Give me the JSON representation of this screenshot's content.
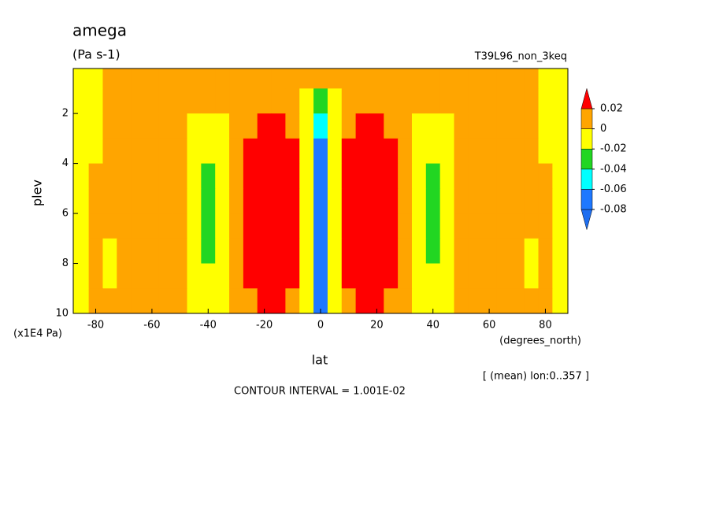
{
  "chart_data": {
    "type": "contourf",
    "title": "amega",
    "subtitle": "(Pa s-1)",
    "dataset": "T39L96_non_3keq",
    "xlabel": "lat",
    "ylabel": "plev",
    "xunits": "(degrees_north)",
    "yunits": "(x1E4 Pa)",
    "note": "[ (mean) lon:0..357 ]",
    "footer": "CONTOUR INTERVAL = 1.001E-02",
    "xlim": [
      -88,
      88
    ],
    "ylim": [
      10,
      0.2
    ],
    "xticks": [
      -80,
      -60,
      -40,
      -20,
      0,
      20,
      40,
      60,
      80
    ],
    "yticks": [
      2,
      4,
      6,
      8,
      10
    ],
    "x": [
      -85,
      -80,
      -75,
      -70,
      -65,
      -60,
      -55,
      -50,
      -45,
      -40,
      -35,
      -30,
      -25,
      -20,
      -15,
      -10,
      -5,
      0,
      5,
      10,
      15,
      20,
      25,
      30,
      35,
      40,
      45,
      50,
      55,
      60,
      65,
      70,
      75,
      80,
      85
    ],
    "y": [
      0.5,
      1.5,
      2.5,
      3.5,
      4.5,
      5.5,
      6.5,
      7.5,
      8.5,
      9.5
    ],
    "z": [
      [
        -0.01,
        -0.01,
        0.01,
        0.01,
        0.01,
        0.01,
        0.01,
        0.01,
        0.01,
        0.01,
        0.01,
        0.01,
        0.01,
        0.01,
        0.01,
        0.01,
        0.01,
        0.01,
        0.01,
        0.01,
        0.01,
        0.01,
        0.01,
        0.01,
        0.01,
        0.01,
        0.01,
        0.01,
        0.01,
        0.01,
        0.01,
        0.01,
        0.01,
        -0.01,
        -0.01
      ],
      [
        -0.01,
        -0.01,
        0.01,
        0.01,
        0.01,
        0.01,
        0.01,
        0.01,
        0.01,
        0.01,
        0.01,
        0.01,
        0.01,
        0.01,
        0.01,
        0.01,
        -0.01,
        -0.03,
        -0.01,
        0.01,
        0.01,
        0.01,
        0.01,
        0.01,
        0.01,
        0.01,
        0.01,
        0.01,
        0.01,
        0.01,
        0.01,
        0.01,
        0.01,
        -0.01,
        -0.01
      ],
      [
        -0.01,
        -0.01,
        0.01,
        0.01,
        0.01,
        0.01,
        0.01,
        0.01,
        -0.01,
        -0.01,
        -0.01,
        0.01,
        0.01,
        0.03,
        0.03,
        0.01,
        -0.01,
        -0.05,
        -0.01,
        0.01,
        0.03,
        0.03,
        0.01,
        0.01,
        -0.01,
        -0.01,
        -0.01,
        0.01,
        0.01,
        0.01,
        0.01,
        0.01,
        0.01,
        -0.01,
        -0.01
      ],
      [
        -0.01,
        -0.01,
        0.01,
        0.01,
        0.01,
        0.01,
        0.01,
        0.01,
        -0.01,
        -0.01,
        -0.01,
        0.01,
        0.03,
        0.03,
        0.03,
        0.03,
        -0.01,
        -0.07,
        -0.01,
        0.03,
        0.03,
        0.03,
        0.03,
        0.01,
        -0.01,
        -0.01,
        -0.01,
        0.01,
        0.01,
        0.01,
        0.01,
        0.01,
        0.01,
        -0.01,
        -0.01
      ],
      [
        -0.01,
        0.01,
        0.01,
        0.01,
        0.01,
        0.01,
        0.01,
        0.01,
        -0.01,
        -0.03,
        -0.01,
        0.01,
        0.03,
        0.03,
        0.03,
        0.03,
        -0.01,
        -0.07,
        -0.01,
        0.03,
        0.03,
        0.03,
        0.03,
        0.01,
        -0.01,
        -0.03,
        -0.01,
        0.01,
        0.01,
        0.01,
        0.01,
        0.01,
        0.01,
        0.01,
        -0.01
      ],
      [
        -0.01,
        0.01,
        0.01,
        0.01,
        0.01,
        0.01,
        0.01,
        0.01,
        -0.01,
        -0.03,
        -0.01,
        0.01,
        0.03,
        0.03,
        0.03,
        0.03,
        -0.01,
        -0.07,
        -0.01,
        0.03,
        0.03,
        0.03,
        0.03,
        0.01,
        -0.01,
        -0.03,
        -0.01,
        0.01,
        0.01,
        0.01,
        0.01,
        0.01,
        0.01,
        0.01,
        -0.01
      ],
      [
        -0.01,
        0.01,
        0.01,
        0.01,
        0.01,
        0.01,
        0.01,
        0.01,
        -0.01,
        -0.03,
        -0.01,
        0.01,
        0.03,
        0.03,
        0.03,
        0.03,
        -0.01,
        -0.07,
        -0.01,
        0.03,
        0.03,
        0.03,
        0.03,
        0.01,
        -0.01,
        -0.03,
        -0.01,
        0.01,
        0.01,
        0.01,
        0.01,
        0.01,
        0.01,
        0.01,
        -0.01
      ],
      [
        -0.01,
        0.01,
        -0.01,
        0.01,
        0.01,
        0.01,
        0.01,
        0.01,
        -0.01,
        -0.03,
        -0.01,
        0.01,
        0.03,
        0.03,
        0.03,
        0.03,
        -0.01,
        -0.07,
        -0.01,
        0.03,
        0.03,
        0.03,
        0.03,
        0.01,
        -0.01,
        -0.03,
        -0.01,
        0.01,
        0.01,
        0.01,
        0.01,
        0.01,
        -0.01,
        0.01,
        -0.01
      ],
      [
        -0.01,
        0.01,
        -0.01,
        0.01,
        0.01,
        0.01,
        0.01,
        0.01,
        -0.01,
        -0.01,
        -0.01,
        0.01,
        0.03,
        0.03,
        0.03,
        0.03,
        -0.01,
        -0.07,
        -0.01,
        0.03,
        0.03,
        0.03,
        0.03,
        0.01,
        -0.01,
        -0.01,
        -0.01,
        0.01,
        0.01,
        0.01,
        0.01,
        0.01,
        -0.01,
        0.01,
        -0.01
      ],
      [
        -0.01,
        0.01,
        0.01,
        0.01,
        0.01,
        0.01,
        0.01,
        0.01,
        -0.01,
        -0.01,
        -0.01,
        0.01,
        0.01,
        0.03,
        0.03,
        0.01,
        -0.01,
        -0.07,
        -0.01,
        0.01,
        0.03,
        0.03,
        0.01,
        0.01,
        -0.01,
        -0.01,
        -0.01,
        0.01,
        0.01,
        0.01,
        0.01,
        0.01,
        0.01,
        0.01,
        -0.01
      ]
    ],
    "colorbar": {
      "levels": [
        -0.08,
        -0.06,
        -0.04,
        -0.02,
        0,
        0.02
      ],
      "colors": [
        "#1e6ef0",
        "#1e78ff",
        "#00ffff",
        "#22d622",
        "#ffff00",
        "#ffa500",
        "#ff0000"
      ]
    }
  }
}
